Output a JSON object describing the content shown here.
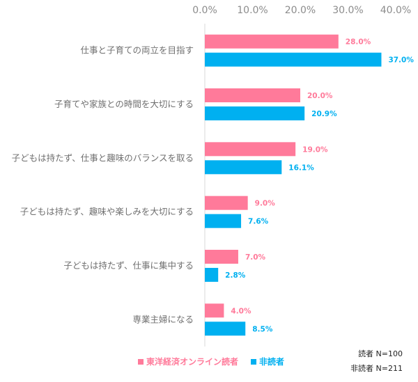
{
  "chart_data": {
    "type": "bar",
    "orientation": "horizontal",
    "categories": [
      "仕事と子育ての両立を目指す",
      "子育てや家族との時間を大切にする",
      "子どもは持たず、仕事と趣味のバランスを取る",
      "子どもは持たず、趣味や楽しみを大切にする",
      "子どもは持たず、仕事に集中する",
      "専業主婦になる"
    ],
    "series": [
      {
        "name": "東洋経済オンライン読者",
        "color": "#ff7a9a",
        "values": [
          28.0,
          20.0,
          19.0,
          9.0,
          7.0,
          4.0
        ]
      },
      {
        "name": "非読者",
        "color": "#00b0f0",
        "values": [
          37.0,
          20.9,
          16.1,
          7.6,
          2.8,
          8.5
        ]
      }
    ],
    "xlim": [
      0,
      40
    ],
    "xticks": [
      "0.0%",
      "10.0%",
      "20.0%",
      "30.0%",
      "40.0%"
    ],
    "xtick_values": [
      0,
      10,
      20,
      30,
      40
    ],
    "axis_position": "top",
    "grid": false,
    "legend": "bottom",
    "notes": [
      "読者 N=100",
      "非読者 N=211"
    ]
  }
}
